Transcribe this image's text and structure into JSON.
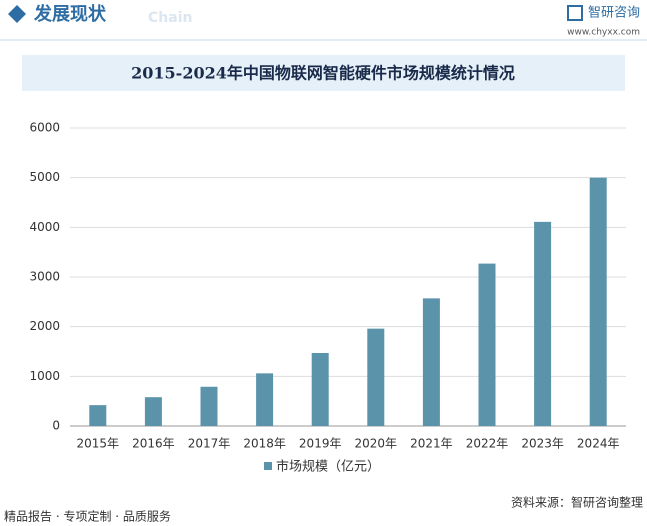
{
  "header": {
    "section": "发展现状",
    "section_en": "Chain",
    "brand": "智研咨询",
    "url": "www.chyxx.com"
  },
  "chart_data": {
    "type": "bar",
    "title": "2015-2024年中国物联网智能硬件市场规模统计情况",
    "categories": [
      "2015年",
      "2016年",
      "2017年",
      "2018年",
      "2019年",
      "2020年",
      "2021年",
      "2022年",
      "2023年",
      "2024年"
    ],
    "series": [
      {
        "name": "市场规模（亿元）",
        "color": "#5b93ab",
        "values": [
          420,
          580,
          790,
          1060,
          1470,
          1960,
          2570,
          3270,
          4110,
          5000
        ]
      }
    ],
    "ylim": [
      0,
      6000
    ],
    "yticks": [
      0,
      1000,
      2000,
      3000,
      4000,
      5000,
      6000
    ],
    "grid": true,
    "legend": "bottom"
  },
  "footer": {
    "left": "精品报告 · 专项定制 · 品质服务",
    "source": "资料来源：智研咨询整理"
  }
}
